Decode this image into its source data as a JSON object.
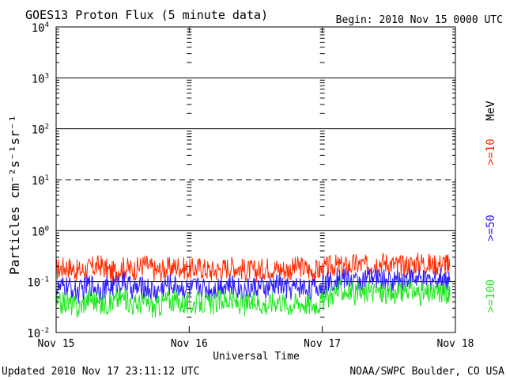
{
  "title": "GOES13 Proton Flux (5 minute data)",
  "begin_label": "Begin: 2010 Nov 15 0000 UTC",
  "updated_label": "Updated 2010 Nov 17 23:11:12 UTC",
  "credit_label": "NOAA/SWPC Boulder, CO USA",
  "chart_data": {
    "type": "line",
    "title": "GOES13 Proton Flux (5 minute data)",
    "xlabel": "Universal Time",
    "ylabel": "Particles cm⁻²s⁻¹sr⁻¹",
    "yscale": "log",
    "ylim": [
      0.01,
      10000
    ],
    "x_ticks": [
      "Nov 15",
      "Nov 16",
      "Nov 17",
      "Nov 18"
    ],
    "x_unit": "hours since 2010 Nov 15 0000 UTC",
    "xlim": [
      0,
      72
    ],
    "y_ticks": [
      {
        "base": "10",
        "exp": "-2",
        "value": 0.01
      },
      {
        "base": "10",
        "exp": "-1",
        "value": 0.1
      },
      {
        "base": "10",
        "exp": "0",
        "value": 1
      },
      {
        "base": "10",
        "exp": "1",
        "value": 10
      },
      {
        "base": "10",
        "exp": "2",
        "value": 100
      },
      {
        "base": "10",
        "exp": "3",
        "value": 1000
      },
      {
        "base": "10",
        "exp": "4",
        "value": 10000
      }
    ],
    "threshold_lines": [
      {
        "value": 10,
        "style": "dashed"
      }
    ],
    "legend_unit": "MeV",
    "series": [
      {
        "name": ">=10",
        "color": "#ff2a00",
        "x": [
          0,
          2,
          4,
          6,
          8,
          10,
          12,
          14,
          16,
          18,
          20,
          22,
          24,
          26,
          28,
          30,
          32,
          34,
          36,
          38,
          40,
          42,
          44,
          46,
          48,
          50,
          52,
          54,
          56,
          58,
          60,
          62,
          64,
          66,
          68,
          70,
          71
        ],
        "values": [
          0.17,
          0.2,
          0.16,
          0.18,
          0.21,
          0.15,
          0.19,
          0.17,
          0.22,
          0.16,
          0.18,
          0.2,
          0.17,
          0.19,
          0.16,
          0.18,
          0.2,
          0.17,
          0.16,
          0.19,
          0.18,
          0.17,
          0.2,
          0.16,
          0.17,
          0.21,
          0.19,
          0.22,
          0.2,
          0.25,
          0.23,
          0.2,
          0.22,
          0.24,
          0.21,
          0.23,
          0.2
        ]
      },
      {
        "name": ">=50",
        "color": "#2a1aff",
        "x": [
          0,
          2,
          4,
          6,
          8,
          10,
          12,
          14,
          16,
          18,
          20,
          22,
          24,
          26,
          28,
          30,
          32,
          34,
          36,
          38,
          40,
          42,
          44,
          46,
          48,
          50,
          52,
          54,
          56,
          58,
          60,
          62,
          64,
          66,
          68,
          70,
          71
        ],
        "values": [
          0.07,
          0.08,
          0.06,
          0.09,
          0.07,
          0.08,
          0.1,
          0.07,
          0.08,
          0.06,
          0.09,
          0.08,
          0.07,
          0.08,
          0.07,
          0.09,
          0.08,
          0.07,
          0.08,
          0.07,
          0.09,
          0.07,
          0.08,
          0.07,
          0.08,
          0.11,
          0.12,
          0.1,
          0.11,
          0.12,
          0.1,
          0.11,
          0.12,
          0.1,
          0.11,
          0.12,
          0.1
        ]
      },
      {
        "name": ">=100",
        "color": "#22e622",
        "x": [
          0,
          2,
          4,
          6,
          8,
          10,
          12,
          14,
          16,
          18,
          20,
          22,
          24,
          26,
          28,
          30,
          32,
          34,
          36,
          38,
          40,
          42,
          44,
          46,
          48,
          50,
          52,
          54,
          56,
          58,
          60,
          62,
          64,
          66,
          68,
          70,
          71
        ],
        "values": [
          0.035,
          0.04,
          0.03,
          0.05,
          0.035,
          0.04,
          0.05,
          0.035,
          0.04,
          0.03,
          0.045,
          0.04,
          0.035,
          0.04,
          0.035,
          0.045,
          0.04,
          0.035,
          0.04,
          0.035,
          0.045,
          0.035,
          0.04,
          0.035,
          0.04,
          0.06,
          0.07,
          0.055,
          0.06,
          0.065,
          0.055,
          0.06,
          0.07,
          0.055,
          0.06,
          0.065,
          0.055
        ]
      }
    ]
  }
}
